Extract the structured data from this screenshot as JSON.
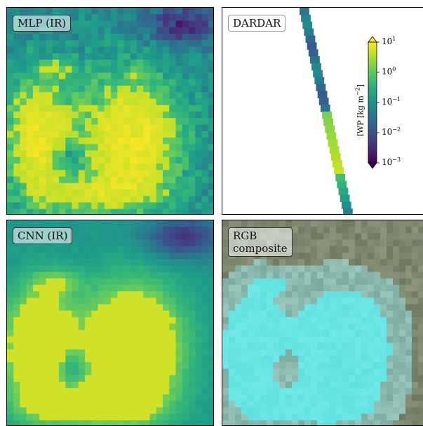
{
  "chart_data": [
    {
      "type": "heatmap",
      "panel": "top-left",
      "label": "MLP (IR)",
      "colormap": "viridis",
      "description_values": "log10 IWP field on ~32x32 grid"
    },
    {
      "type": "heatmap",
      "panel": "top-right",
      "label": "DARDAR",
      "colormap": "viridis",
      "colorbar": {
        "title": "IWP [kg m",
        "title_sup": "−2",
        "title_end": "]",
        "scale": "log",
        "range": [
          0.001,
          10
        ],
        "ticks": [
          {
            "base": "10",
            "exp": "1"
          },
          {
            "base": "10",
            "exp": "0"
          },
          {
            "base": "10",
            "exp": "−1"
          },
          {
            "base": "10",
            "exp": "−2"
          },
          {
            "base": "10",
            "exp": "−3"
          }
        ],
        "extend": "both"
      }
    },
    {
      "type": "heatmap",
      "panel": "bottom-left",
      "label": "CNN (IR)",
      "colormap": "viridis"
    },
    {
      "type": "heatmap",
      "panel": "bottom-right",
      "label": "RGB\ncomposite",
      "colormap": "rgb"
    }
  ]
}
